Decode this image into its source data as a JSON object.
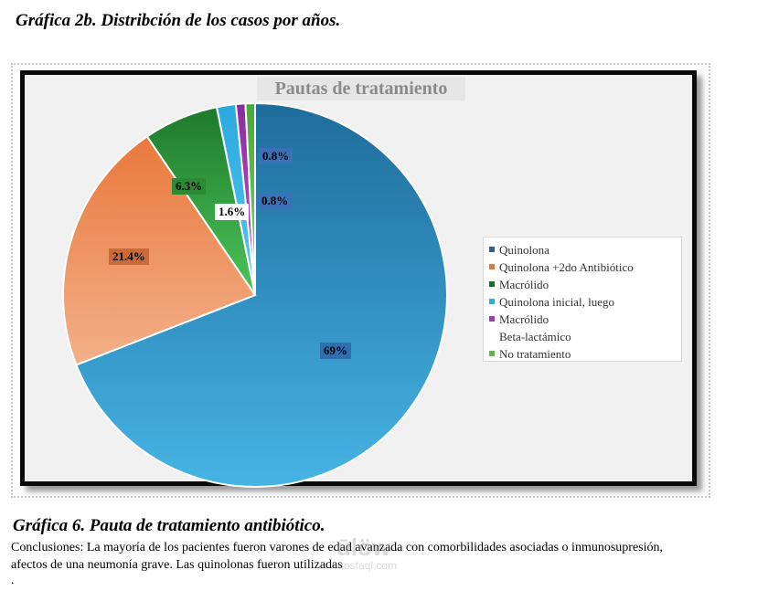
{
  "top_caption": "Gráfica 2b. Distribción de los casos por años.",
  "chart_data": {
    "type": "pie",
    "title": "Pautas de tratamiento",
    "legend_position": "right",
    "slices": [
      {
        "name": "Quinolona",
        "value": 69,
        "label": "69%",
        "color": "#1e6c9b",
        "color_light": "#45b4e5",
        "label_bg": "#2f6fae"
      },
      {
        "name": "Quinolona +2do Antibiótico",
        "value": 21.4,
        "label": "21.4%",
        "color": "#e9793c",
        "color_light": "#f3b089",
        "label_bg": "#c96a3a"
      },
      {
        "name": "Macrólido",
        "value": 6.3,
        "label": "6.3%",
        "color": "#1d7a2a",
        "color_light": "#4cc45a",
        "label_bg": "#2d8a34"
      },
      {
        "name": "Quinolona inicial, luego Macrólido",
        "value": 1.6,
        "label": "1.6%",
        "color": "#2aa9e0",
        "color_light": "#58c6ee",
        "label_bg": "#ffffff"
      },
      {
        "name": "Beta-lactámico",
        "value": 0.8,
        "label": "0.8%",
        "color": "#8a2aa0",
        "color_light": "#c259d6",
        "label_bg": "#3a72b8"
      },
      {
        "name": "No tratamiento",
        "value": 0.8,
        "label": "0.8%",
        "color": "#4aa83c",
        "color_light": "#7fd06a",
        "label_bg": "#3a72b8"
      }
    ]
  },
  "legend": {
    "items": [
      {
        "text": "Quinolona",
        "color": "#2f5f8a"
      },
      {
        "text": "Quinolona +2do Antibiótico",
        "color": "#e07a3c"
      },
      {
        "text": "Macrólido",
        "color": "#1f6b28"
      },
      {
        "text": "Quinolona inicial, luego",
        "color": "#35a9dc"
      },
      {
        "text": "Macrólido",
        "color": "#9a3cb0"
      },
      {
        "text": "Beta-lactámico",
        "color": ""
      },
      {
        "text": "No tratamiento",
        "color": "#5cb84a"
      }
    ]
  },
  "bottom_caption": "Gráfica 6. Pauta de tratamiento antibiótico.",
  "conclusion": "Conclusiones: La mayoría de los pacientes fueron varones de edad avanzada con comorbilidades asociadas o inmunosupresión, afectos de una neumonía grave. Las quinolonas fueron utilizadas",
  "trailing_mark": ".",
  "watermark": {
    "brand": "ūlöw",
    "site": "mostaql.com"
  }
}
